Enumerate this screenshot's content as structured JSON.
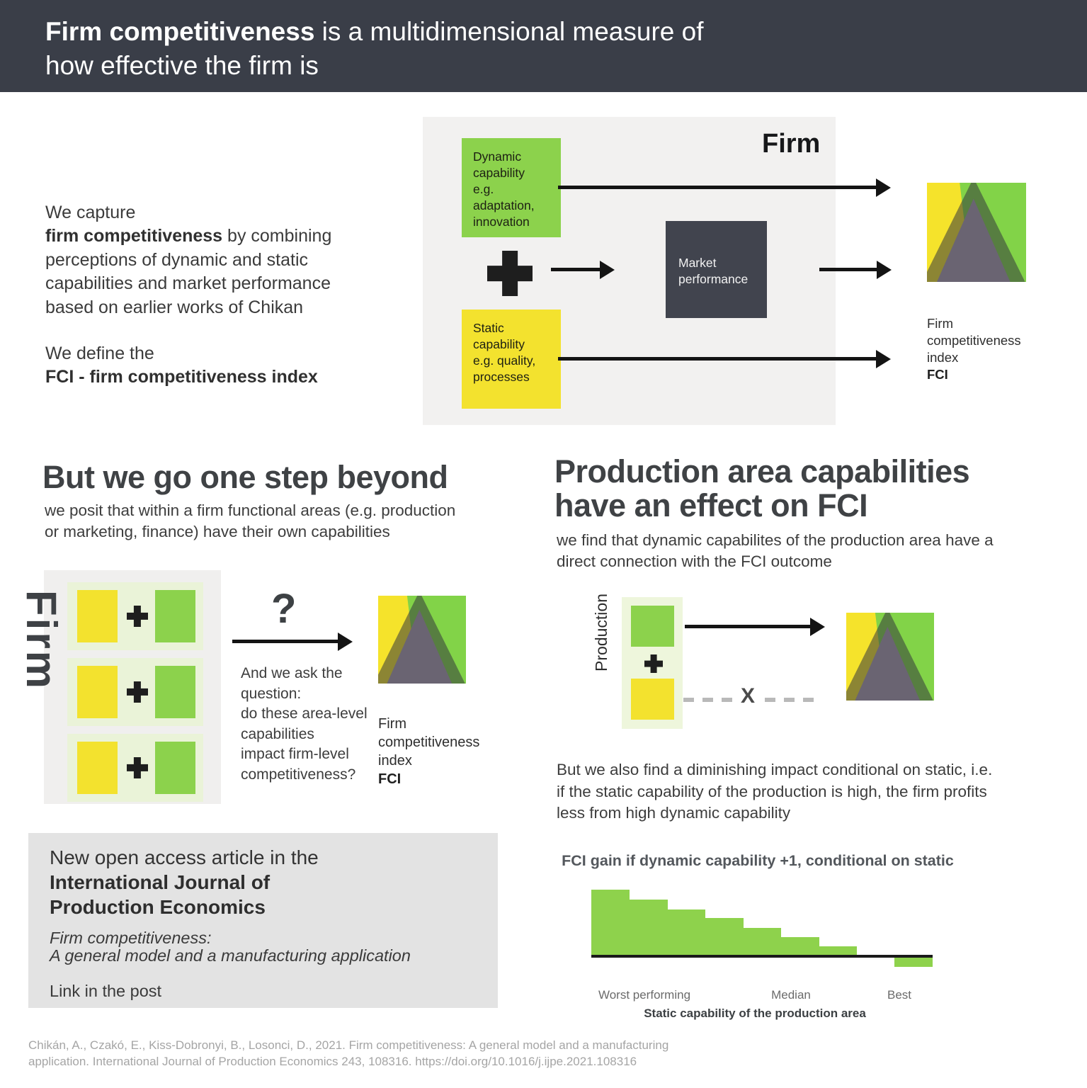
{
  "colors": {
    "header_bg": "#3a3e48",
    "panel_bg": "#f2f1f0",
    "green": "#8cd24c",
    "yellow": "#f3e22e",
    "pale_green": "#eaf3d8",
    "dark_box": "#41444e",
    "logo_yellow": "#f5e32b",
    "logo_green": "#82d348",
    "logo_gray_triangle": "#6a6472",
    "bar_green": "#8ed24c",
    "dash_gray": "#b9b9b9",
    "article_bg": "#e3e3e3",
    "citation_gray": "#a5a5a5"
  },
  "header": {
    "bold": "Firm competitiveness",
    "rest": " is a multidimensional measure of",
    "line2": "how effective the firm is"
  },
  "intro": {
    "p1_lead": "We capture\n",
    "p1_bold": "firm competitiveness",
    "p1_rest": " by combining\nperceptions of dynamic and static\ncapabilities and market performance\nbased on earlier works of Chikan",
    "p2_lead": "We define the\n",
    "p2_bold": "FCI - firm competitiveness index"
  },
  "firm_model": {
    "panel_label": "Firm",
    "dynamic_box": "Dynamic\ncapability\ne.g.\nadaptation,\ninnovation",
    "static_box": "Static\ncapability\ne.g. quality,\nprocesses",
    "market_box": "Market\nperformance",
    "fci_caption": "Firm\ncompetitiveness\nindex",
    "fci_bold": "FCI"
  },
  "step_beyond": {
    "heading": "But we go one step beyond",
    "subtext": "we posit that within a firm functional areas (e.g. production\nor marketing, finance) have their own capabilities",
    "firm_label": "Firm",
    "question_mark": "?",
    "question_text": "And we ask the\nquestion:\ndo these area-level\ncapabilities\nimpact firm-level\ncompetitiveness?",
    "fci_caption": "Firm\ncompetitiveness\nindex",
    "fci_bold": "FCI"
  },
  "production": {
    "heading": "Production area capabilities\nhave an effect on FCI",
    "subtext": "we find that dynamic capabilites of the production area  have a\ndirect connection with the FCI outcome",
    "label": "Production",
    "x_mark": "X",
    "note": "But we also find a diminishing impact conditional on static, i.e.\nif the static capability of the production  is high, the firm profits\nless from high dynamic capability"
  },
  "article": {
    "line1": "New open access article in the",
    "journal": "International Journal of\nProduction Economics",
    "title_italic": "Firm competitiveness:\nA general model and a manufacturing application",
    "link": "Link in the post"
  },
  "chart_data": {
    "type": "bar",
    "title": "FCI gain if dynamic capability +1, conditional on static",
    "xlabel": "Static capability of the production area",
    "ylabel": "",
    "x_tick_labels": [
      "Worst performing",
      "Median",
      "Best"
    ],
    "categories": [
      "1",
      "2",
      "3",
      "4",
      "5",
      "6",
      "7",
      "8",
      "9"
    ],
    "values": [
      0.92,
      0.78,
      0.64,
      0.52,
      0.38,
      0.25,
      0.12,
      0,
      -0.13
    ],
    "ylim": [
      -0.2,
      1.0
    ],
    "grid": false,
    "legend": false,
    "bar_color": "#8ed24c",
    "note": "staircase of 9 adjacent bars, FCI gain decreasing from worst to best static capability; last bar negative"
  },
  "citation": "Chikán, A., Czakó, E., Kiss-Dobronyi, B., Losonci, D., 2021. Firm competitiveness: A general model and a manufacturing\napplication. International Journal of Production Economics 243, 108316. https://doi.org/10.1016/j.ijpe.2021.108316"
}
